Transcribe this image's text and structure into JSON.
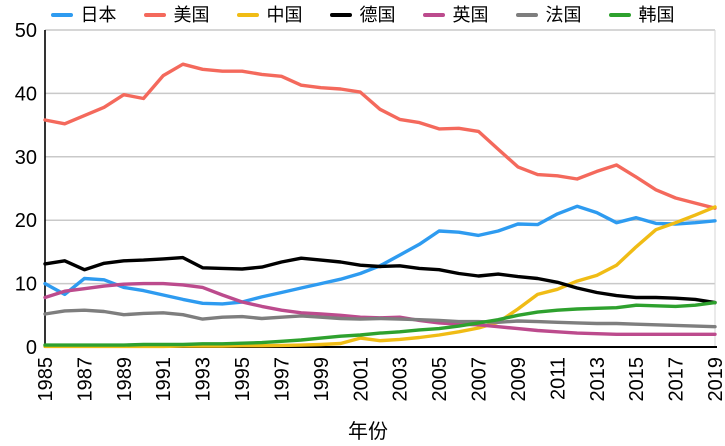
{
  "chart_data": {
    "type": "line",
    "title": "",
    "xlabel": "年份",
    "ylabel": "",
    "ylim": [
      0,
      50
    ],
    "yticks": [
      0,
      10,
      20,
      30,
      40,
      50
    ],
    "grid": true,
    "legend_position": "top",
    "x": [
      1985,
      1986,
      1987,
      1988,
      1989,
      1990,
      1991,
      1992,
      1993,
      1994,
      1995,
      1996,
      1997,
      1998,
      1999,
      2000,
      2001,
      2002,
      2003,
      2004,
      2005,
      2006,
      2007,
      2008,
      2009,
      2010,
      2011,
      2012,
      2013,
      2014,
      2015,
      2016,
      2017,
      2018,
      2019
    ],
    "xtick_labels": [
      "1985",
      "1987",
      "1989",
      "1991",
      "1993",
      "1995",
      "1997",
      "1999",
      "2001",
      "2003",
      "2005",
      "2007",
      "2009",
      "2011",
      "2013",
      "2015",
      "2017",
      "2019"
    ],
    "series": [
      {
        "name": "日本",
        "color": "#2E9BF0",
        "values": [
          10.0,
          8.3,
          10.8,
          10.6,
          9.4,
          8.9,
          8.2,
          7.5,
          6.9,
          6.8,
          7.1,
          7.9,
          8.6,
          9.3,
          10.0,
          10.7,
          11.6,
          12.8,
          14.5,
          16.2,
          18.3,
          18.1,
          17.6,
          18.3,
          19.4,
          19.3,
          21.0,
          22.2,
          21.2,
          19.6,
          20.4,
          19.5,
          19.4,
          19.6,
          19.9
        ]
      },
      {
        "name": "美国",
        "color": "#F4695C",
        "values": [
          35.8,
          35.2,
          36.5,
          37.8,
          39.8,
          39.2,
          42.8,
          44.6,
          43.8,
          43.5,
          43.5,
          43.0,
          42.7,
          41.3,
          40.9,
          40.7,
          40.2,
          37.5,
          35.9,
          35.4,
          34.4,
          34.5,
          34.0,
          31.2,
          28.4,
          27.2,
          27.0,
          26.5,
          27.7,
          28.7,
          26.8,
          24.8,
          23.5,
          22.7,
          21.9
        ]
      },
      {
        "name": "中国",
        "color": "#F0BC15",
        "values": [
          0.1,
          0.1,
          0.1,
          0.1,
          0.1,
          0.1,
          0.1,
          0.15,
          0.15,
          0.15,
          0.2,
          0.2,
          0.25,
          0.3,
          0.4,
          0.55,
          1.4,
          1.0,
          1.2,
          1.5,
          1.9,
          2.4,
          3.0,
          3.9,
          6.0,
          8.3,
          9.1,
          10.4,
          11.3,
          12.9,
          15.8,
          18.5,
          19.6,
          20.8,
          22.1
        ]
      },
      {
        "name": "德国",
        "color": "#000000",
        "values": [
          13.1,
          13.6,
          12.2,
          13.2,
          13.6,
          13.7,
          13.9,
          14.1,
          12.5,
          12.4,
          12.3,
          12.6,
          13.4,
          14.0,
          13.7,
          13.4,
          12.9,
          12.7,
          12.8,
          12.4,
          12.2,
          11.6,
          11.2,
          11.5,
          11.1,
          10.8,
          10.2,
          9.3,
          8.6,
          8.1,
          7.8,
          7.8,
          7.7,
          7.5,
          7.0
        ]
      },
      {
        "name": "英国",
        "color": "#BC4B8D",
        "values": [
          7.8,
          8.8,
          9.2,
          9.6,
          9.9,
          10.0,
          10.0,
          9.8,
          9.4,
          8.2,
          7.1,
          6.4,
          5.8,
          5.4,
          5.2,
          5.0,
          4.7,
          4.6,
          4.7,
          4.2,
          3.8,
          3.6,
          3.5,
          3.2,
          2.9,
          2.6,
          2.4,
          2.2,
          2.1,
          2.0,
          2.0,
          2.0,
          2.0,
          2.0,
          2.0
        ]
      },
      {
        "name": "法国",
        "color": "#7E7E7E",
        "values": [
          5.2,
          5.7,
          5.8,
          5.6,
          5.1,
          5.3,
          5.4,
          5.1,
          4.4,
          4.7,
          4.8,
          4.5,
          4.7,
          4.9,
          4.7,
          4.5,
          4.4,
          4.5,
          4.4,
          4.3,
          4.2,
          4.0,
          4.0,
          3.9,
          4.1,
          4.0,
          3.9,
          3.8,
          3.7,
          3.7,
          3.6,
          3.5,
          3.4,
          3.3,
          3.2
        ]
      },
      {
        "name": "韩国",
        "color": "#2EA12E",
        "values": [
          0.3,
          0.3,
          0.3,
          0.3,
          0.3,
          0.4,
          0.4,
          0.4,
          0.5,
          0.5,
          0.6,
          0.7,
          0.9,
          1.1,
          1.4,
          1.7,
          1.9,
          2.2,
          2.4,
          2.7,
          2.9,
          3.3,
          3.8,
          4.3,
          5.0,
          5.5,
          5.8,
          6.0,
          6.1,
          6.2,
          6.6,
          6.5,
          6.4,
          6.6,
          7.0
        ]
      }
    ]
  }
}
